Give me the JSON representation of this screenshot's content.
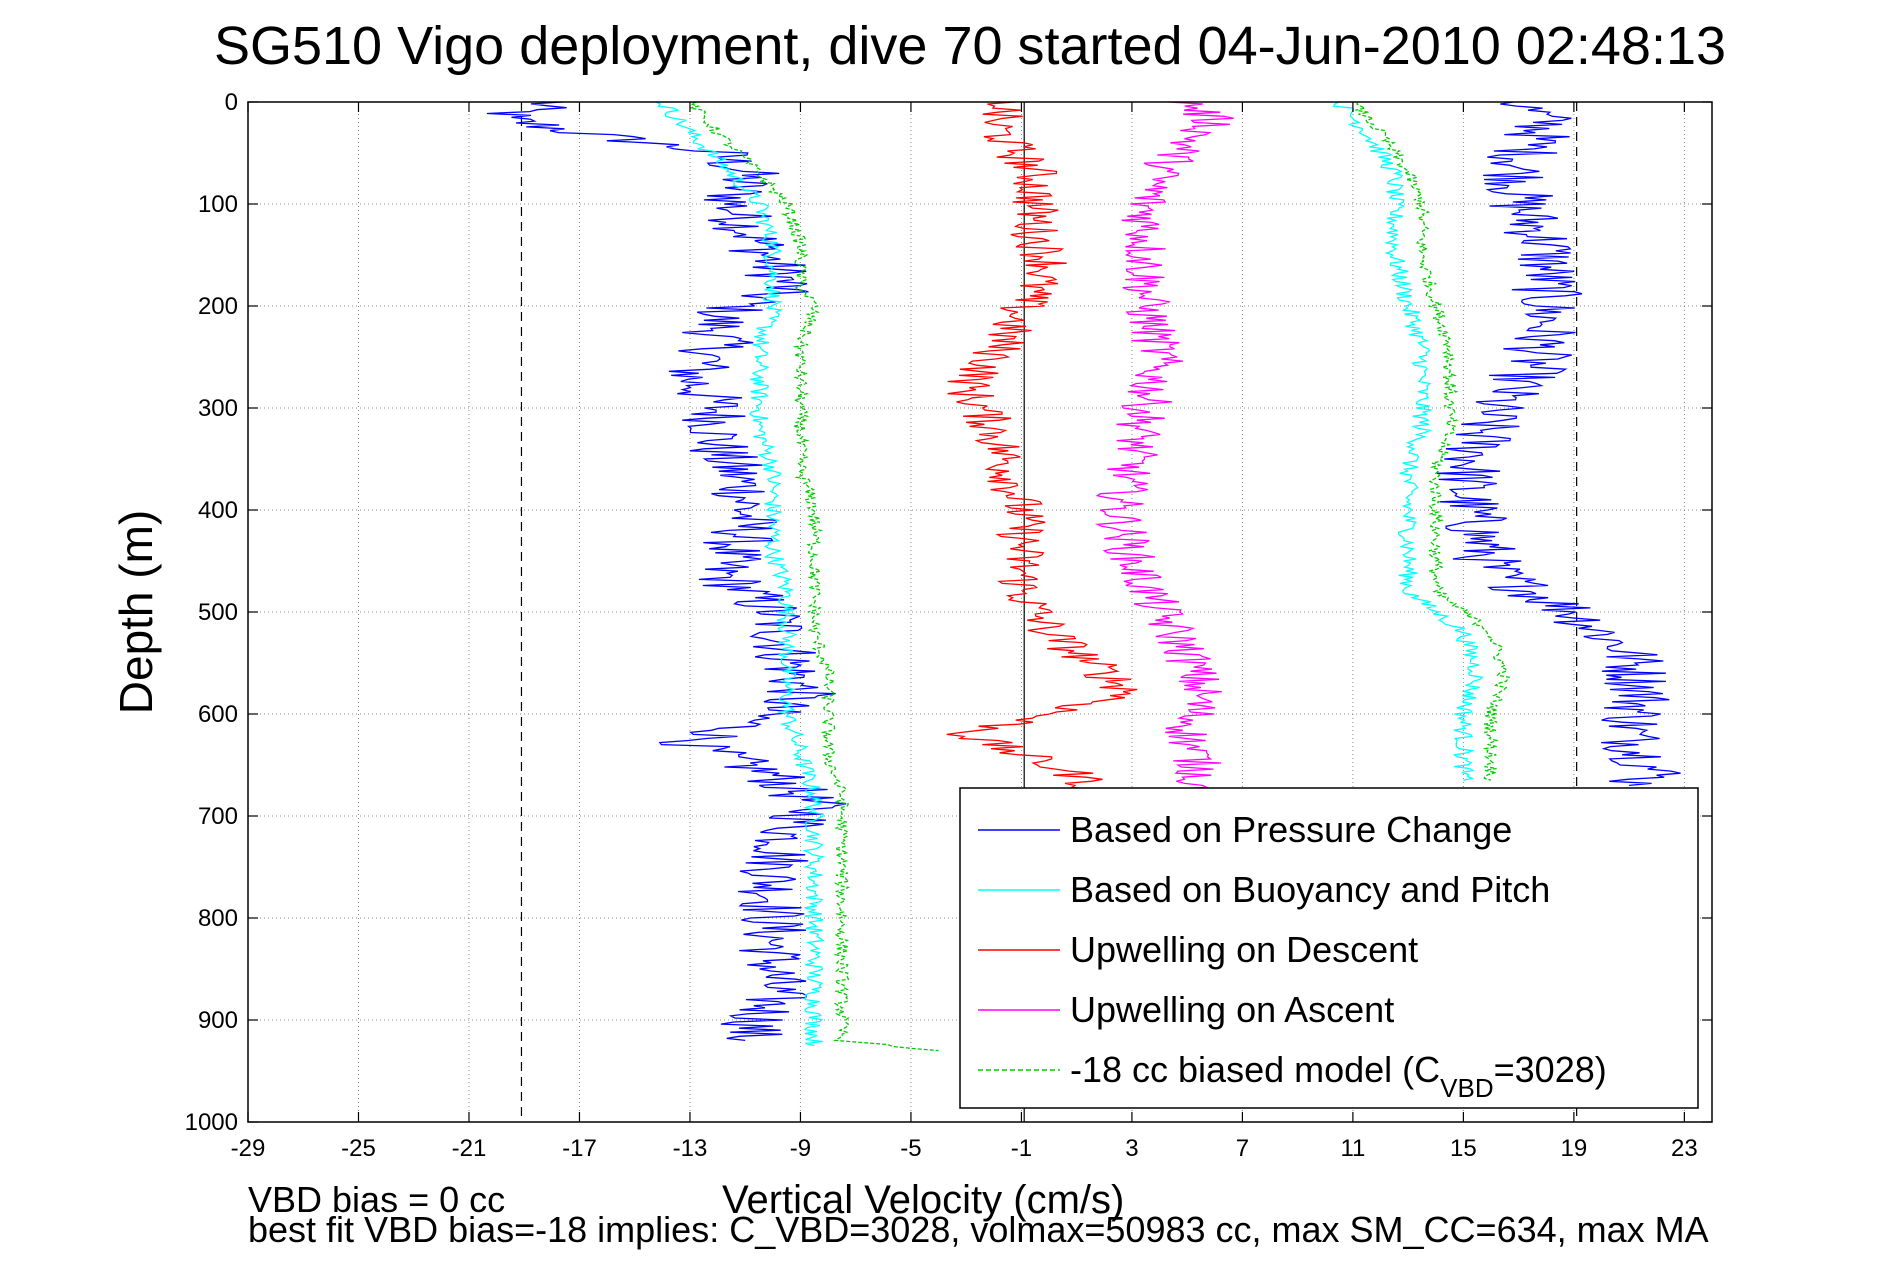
{
  "chart_data": {
    "type": "line",
    "title": "SG510 Vigo deployment, dive 70 started 04-Jun-2010 02:48:13",
    "xlabel": "Vertical Velocity (cm/s)",
    "ylabel": "Depth (m)",
    "xlim": [
      -29,
      24
    ],
    "ylim": [
      0,
      1000
    ],
    "y_reversed": true,
    "xticks": [
      -29,
      -25,
      -21,
      -17,
      -13,
      -9,
      -5,
      -1,
      3,
      7,
      11,
      15,
      19,
      23
    ],
    "yticks": [
      0,
      100,
      200,
      300,
      400,
      500,
      600,
      700,
      800,
      900,
      1000
    ],
    "grid": true,
    "legend_position": "bottom-right",
    "reference_lines": {
      "dashed_x": [
        -19.1,
        19.1
      ],
      "solid_x": [
        -0.9
      ]
    },
    "series": [
      {
        "name": "Based on Pressure Change",
        "color": "#0000ff",
        "style": "solid",
        "branches": [
          {
            "depth": [
              0,
              15,
              30,
              50,
              70,
              100,
              140,
              180,
              210,
              240,
              270,
              300,
              340,
              380,
              420,
              460,
              500,
              540,
              580,
              610,
              630,
              660,
              690,
              720,
              760,
              800,
              840,
              880,
              920
            ],
            "velocity": [
              -18,
              -20,
              -17,
              -12,
              -11,
              -11.5,
              -10.5,
              -9.5,
              -12,
              -12,
              -13,
              -12,
              -12,
              -11,
              -11,
              -12,
              -10,
              -9.5,
              -9,
              -11,
              -13,
              -10,
              -8.5,
              -9.5,
              -10,
              -10,
              -10,
              -10,
              -11
            ]
          },
          {
            "depth": [
              0,
              20,
              60,
              100,
              140,
              180,
              220,
              260,
              300,
              340,
              380,
              420,
              460,
              500,
              540,
              580,
              620,
              660,
              670
            ],
            "velocity": [
              17,
              18,
              17,
              17,
              18,
              18,
              18,
              17.5,
              16,
              15.5,
              15,
              15.5,
              16,
              19,
              21,
              21.5,
              21,
              22,
              21
            ]
          }
        ]
      },
      {
        "name": "Based on Buoyancy and Pitch",
        "color": "#00ffff",
        "style": "solid",
        "branches": [
          {
            "depth": [
              0,
              30,
              70,
              100,
              140,
              180,
              200,
              240,
              280,
              320,
              360,
              400,
              440,
              480,
              520,
              560,
              600,
              640,
              680,
              720,
              760,
              800,
              840,
              880,
              925
            ],
            "velocity": [
              -14,
              -13,
              -11.5,
              -10.5,
              -10,
              -10,
              -10,
              -10.5,
              -10.5,
              -10.5,
              -10,
              -10,
              -10,
              -9.5,
              -9.5,
              -9.5,
              -9.5,
              -9,
              -8.5,
              -8.5,
              -8.5,
              -8.5,
              -8.5,
              -8.5,
              -8.5
            ]
          },
          {
            "depth": [
              0,
              30,
              70,
              100,
              150,
              200,
              240,
              280,
              320,
              360,
              400,
              440,
              480,
              520,
              560,
              600,
              640,
              665
            ],
            "velocity": [
              10.5,
              11.5,
              12.5,
              12.5,
              12.5,
              13,
              13.5,
              13.5,
              13.5,
              13,
              13,
              13,
              13,
              15,
              15.5,
              15,
              15,
              15
            ]
          }
        ]
      },
      {
        "name": "Upwelling on Descent",
        "color": "#ff0000",
        "style": "solid",
        "branches": [
          {
            "depth": [
              0,
              20,
              40,
              70,
              100,
              130,
              160,
              200,
              250,
              280,
              320,
              360,
              400,
              440,
              480,
              520,
              560,
              580,
              600,
              620,
              640,
              660,
              680
            ],
            "velocity": [
              -1.5,
              -2,
              -1.5,
              -0.5,
              -0.5,
              -0.5,
              0,
              -1,
              -2,
              -3,
              -2,
              -1.5,
              -1,
              -1,
              -1,
              0,
              2,
              3,
              0,
              -3,
              -1,
              1,
              2
            ]
          }
        ]
      },
      {
        "name": "Upwelling on Ascent",
        "color": "#ff00ff",
        "style": "solid",
        "branches": [
          {
            "depth": [
              0,
              20,
              40,
              70,
              100,
              150,
              200,
              250,
              300,
              350,
              400,
              450,
              500,
              540,
              580,
              620,
              660,
              680
            ],
            "velocity": [
              5,
              6,
              5,
              4,
              3.5,
              3.5,
              3.5,
              4,
              3.5,
              3,
              2.5,
              3,
              4,
              5,
              5.5,
              5,
              5.5,
              5
            ]
          }
        ]
      },
      {
        "name": "-18 cc biased model (Cᵥᴮᴰ=3028)",
        "color": "#00cc00",
        "style": "dashed",
        "branches": [
          {
            "depth": [
              0,
              30,
              70,
              100,
              140,
              180,
              200,
              240,
              280,
              320,
              360,
              400,
              440,
              480,
              520,
              560,
              600,
              640,
              680,
              720,
              760,
              800,
              840,
              880,
              920,
              930
            ],
            "velocity": [
              -13,
              -12,
              -10.5,
              -9.5,
              -9,
              -9,
              -8.5,
              -9,
              -9,
              -9,
              -9,
              -8.5,
              -8.5,
              -8.5,
              -8.5,
              -8,
              -8,
              -8,
              -7.5,
              -7.5,
              -7.5,
              -7.5,
              -7.5,
              -7.5,
              -7.5,
              -4
            ]
          },
          {
            "depth": [
              0,
              30,
              70,
              100,
              150,
              200,
              240,
              280,
              320,
              360,
              400,
              440,
              480,
              520,
              560,
              600,
              640,
              665
            ],
            "velocity": [
              11,
              12,
              13,
              13.5,
              13.5,
              14,
              14.5,
              14.5,
              14.5,
              14,
              14,
              14,
              14,
              16,
              16.5,
              16,
              16,
              16
            ]
          }
        ]
      }
    ],
    "legend": {
      "entries": [
        {
          "label": "Based on Pressure Change",
          "color": "#0000ff",
          "dash": false
        },
        {
          "label": "Based on Buoyancy and Pitch",
          "color": "#00ffff",
          "dash": false
        },
        {
          "label": "Upwelling on Descent",
          "color": "#ff0000",
          "dash": false
        },
        {
          "label": "Upwelling on Ascent",
          "color": "#ff00ff",
          "dash": false
        },
        {
          "label": "-18 cc biased model (C",
          "sub": "VBD",
          "suffix": "=3028)",
          "color": "#00cc00",
          "dash": true
        }
      ]
    }
  },
  "footer": {
    "line1": "VBD bias = 0 cc",
    "line2": "best fit VBD bias=-18 implies: C_VBD=3028, volmax=50983 cc, max SM_CC=634, max MA"
  }
}
